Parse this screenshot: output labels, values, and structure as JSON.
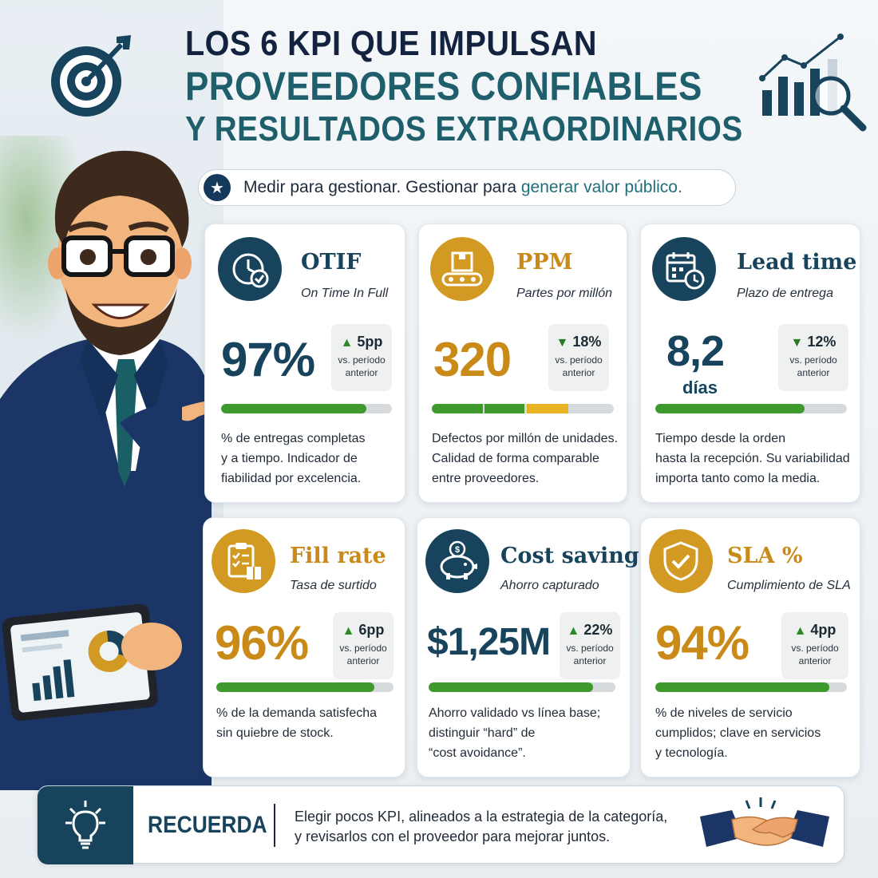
{
  "header": {
    "line1": "LOS 6 KPI QUE IMPULSAN",
    "line2": "PROVEEDORES CONFIABLES",
    "line3": "Y RESULTADOS EXTRAORDINARIOS",
    "tagline_a": "Medir para gestionar. Gestionar para ",
    "tagline_b": "generar valor público."
  },
  "colors": {
    "navy": "#17445c",
    "gold": "#d39a23",
    "green": "#3f9a2e",
    "dark": "#13233f"
  },
  "cards": [
    {
      "id": "otif",
      "title": "OTIF",
      "subtitle": "On Time In Full",
      "value": "97%",
      "unit": "",
      "trend": "up",
      "delta": "5pp",
      "delta_note_1": "vs. período",
      "delta_note_2": "anterior",
      "progress": 0.85,
      "icon": "clock-check-icon",
      "accent": "navy",
      "desc": [
        "% de entregas completas",
        "y a tiempo. Indicador de",
        "fiabilidad por excelencia."
      ]
    },
    {
      "id": "ppm",
      "title": "PPM",
      "subtitle": "Partes por millón",
      "value": "320",
      "unit": "",
      "trend": "down",
      "delta": "18%",
      "delta_note_1": "vs. período",
      "delta_note_2": "anterior",
      "progress": 0.75,
      "icon": "conveyor-icon",
      "accent": "gold",
      "desc": [
        "Defectos por millón de unidades.",
        "Calidad de forma comparable",
        "entre proveedores."
      ]
    },
    {
      "id": "lead",
      "title": "Lead time",
      "subtitle": "Plazo de entrega",
      "value": "8,2",
      "unit": "días",
      "trend": "down",
      "delta": "12%",
      "delta_note_1": "vs. período",
      "delta_note_2": "anterior",
      "progress": 0.78,
      "icon": "calendar-clock-icon",
      "accent": "navy",
      "desc": [
        "Tiempo desde la orden",
        "hasta la recepción. Su variabilidad",
        "importa tanto como la media."
      ]
    },
    {
      "id": "fill",
      "title": "Fill rate",
      "subtitle": "Tasa de surtido",
      "value": "96%",
      "unit": "",
      "trend": "up",
      "delta": "6pp",
      "delta_note_1": "vs. período",
      "delta_note_2": "anterior",
      "progress": 0.89,
      "icon": "clipboard-box-icon",
      "accent": "gold",
      "desc": [
        "% de la demanda satisfecha",
        "sin quiebre de stock."
      ]
    },
    {
      "id": "savings",
      "title": "Cost savings",
      "subtitle": "Ahorro capturado",
      "value": "$1,25M",
      "unit": "",
      "trend": "up",
      "delta": "22%",
      "delta_note_1": "vs. período",
      "delta_note_2": "anterior",
      "progress": 0.88,
      "icon": "piggy-bank-icon",
      "accent": "navy",
      "desc": [
        "Ahorro validado vs línea base;",
        "distinguir “hard” de",
        "“cost avoidance”."
      ]
    },
    {
      "id": "sla",
      "title": "SLA %",
      "subtitle": "Cumplimiento de SLA",
      "value": "94%",
      "unit": "",
      "trend": "up",
      "delta": "4pp",
      "delta_note_1": "vs. período",
      "delta_note_2": "anterior",
      "progress": 0.91,
      "icon": "shield-check-icon",
      "accent": "gold",
      "desc": [
        "% de niveles de servicio",
        "cumplidos; clave en servicios",
        "y tecnología."
      ]
    }
  ],
  "banner": {
    "label": "RECUERDA",
    "text_1": "Elegir pocos KPI, alineados a la estrategia de la categoría,",
    "text_2": "y revisarlos con el proveedor para mejorar juntos."
  }
}
